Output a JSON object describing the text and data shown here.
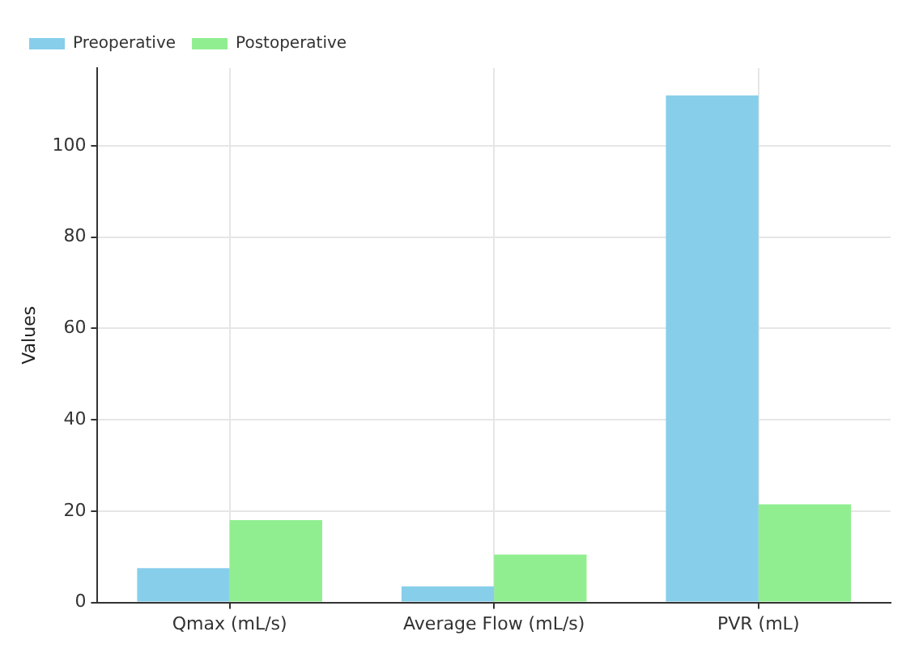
{
  "chart_data": {
    "type": "bar",
    "categories": [
      "Qmax (mL/s)",
      "Average Flow (mL/s)",
      "PVR (mL)"
    ],
    "series": [
      {
        "name": "Preoperative",
        "color": "#87ceeb",
        "values": [
          7.5,
          3.5,
          111
        ]
      },
      {
        "name": "Postoperative",
        "color": "#90ee90",
        "values": [
          18,
          10.5,
          21.5
        ]
      }
    ],
    "ylabel": "Values",
    "ylim": [
      0,
      117
    ],
    "yticks": [
      0,
      20,
      40,
      60,
      80,
      100
    ],
    "grid": true,
    "legend": "top left"
  }
}
